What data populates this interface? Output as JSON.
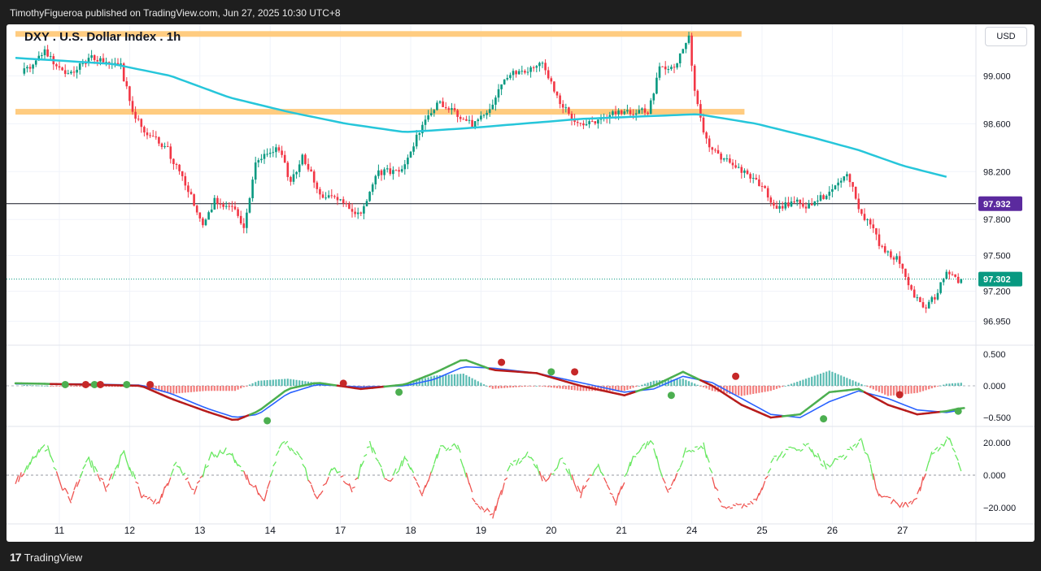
{
  "header": {
    "published": "TimothyFigueroa published on TradingView.com, Jun 27, 2025 10:30 UTC+8"
  },
  "footer": {
    "brand": "TradingView",
    "logo_glyph": "17"
  },
  "toolbar": {
    "currency": "USD"
  },
  "chart_data": {
    "type": "candlestick",
    "title": "DXY . U.S. Dollar Index . 1h",
    "price_axis": {
      "range": [
        96.75,
        99.43
      ],
      "ticks": [
        "99.000",
        "98.600",
        "98.200",
        "97.800",
        "97.500",
        "97.200",
        "96.950"
      ],
      "tick_values": [
        99.0,
        98.6,
        98.2,
        97.8,
        97.5,
        97.2,
        96.95
      ],
      "horizontal_line": {
        "value": 97.932,
        "label": "97.932",
        "color": "#5b2a9e"
      },
      "last_price": {
        "value": 97.302,
        "label": "97.302",
        "color": "#089981"
      }
    },
    "x_axis": {
      "labels": [
        "11",
        "12",
        "13",
        "14",
        "17",
        "18",
        "19",
        "20",
        "21",
        "24",
        "25",
        "26",
        "27"
      ],
      "bar_index": [
        12,
        36,
        60,
        84,
        108,
        132,
        156,
        180,
        204,
        228,
        252,
        276,
        300
      ],
      "bars_total": 321
    },
    "resistance_zones": [
      {
        "value": 99.35,
        "bar_start": -3,
        "bar_end": 245,
        "color": "#ffcc80"
      },
      {
        "value": 98.7,
        "bar_start": -3,
        "bar_end": 246,
        "color": "#ffcc80"
      }
    ],
    "moving_average": {
      "color": "#26c6da",
      "points": [
        [
          -3,
          99.15
        ],
        [
          30,
          99.1
        ],
        [
          50,
          99.0
        ],
        [
          70,
          98.82
        ],
        [
          90,
          98.7
        ],
        [
          110,
          98.6
        ],
        [
          130,
          98.53
        ],
        [
          150,
          98.56
        ],
        [
          170,
          98.6
        ],
        [
          190,
          98.64
        ],
        [
          210,
          98.66
        ],
        [
          230,
          98.68
        ],
        [
          250,
          98.6
        ],
        [
          270,
          98.48
        ],
        [
          285,
          98.38
        ],
        [
          300,
          98.25
        ],
        [
          316,
          98.15
        ]
      ]
    },
    "price_path": [
      [
        -3,
        98.95
      ],
      [
        8,
        99.2
      ],
      [
        16,
        99.0
      ],
      [
        24,
        99.15
      ],
      [
        34,
        99.08
      ],
      [
        38,
        98.7
      ],
      [
        42,
        98.55
      ],
      [
        50,
        98.38
      ],
      [
        58,
        98.0
      ],
      [
        62,
        97.75
      ],
      [
        66,
        97.95
      ],
      [
        72,
        97.92
      ],
      [
        76,
        97.7
      ],
      [
        80,
        98.3
      ],
      [
        88,
        98.4
      ],
      [
        92,
        98.1
      ],
      [
        96,
        98.35
      ],
      [
        102,
        98.0
      ],
      [
        110,
        97.95
      ],
      [
        116,
        97.82
      ],
      [
        122,
        98.2
      ],
      [
        130,
        98.2
      ],
      [
        136,
        98.55
      ],
      [
        142,
        98.78
      ],
      [
        148,
        98.7
      ],
      [
        154,
        98.6
      ],
      [
        160,
        98.72
      ],
      [
        166,
        99.0
      ],
      [
        172,
        99.05
      ],
      [
        178,
        99.1
      ],
      [
        184,
        98.75
      ],
      [
        190,
        98.62
      ],
      [
        196,
        98.6
      ],
      [
        202,
        98.7
      ],
      [
        208,
        98.7
      ],
      [
        214,
        98.7
      ],
      [
        218,
        99.05
      ],
      [
        224,
        99.1
      ],
      [
        228,
        99.35
      ],
      [
        230,
        98.85
      ],
      [
        234,
        98.45
      ],
      [
        240,
        98.3
      ],
      [
        246,
        98.2
      ],
      [
        252,
        98.1
      ],
      [
        258,
        97.9
      ],
      [
        264,
        97.95
      ],
      [
        270,
        97.9
      ],
      [
        276,
        98.05
      ],
      [
        282,
        98.2
      ],
      [
        286,
        97.9
      ],
      [
        290,
        97.75
      ],
      [
        294,
        97.55
      ],
      [
        300,
        97.45
      ],
      [
        304,
        97.2
      ],
      [
        308,
        97.05
      ],
      [
        312,
        97.15
      ],
      [
        316,
        97.35
      ],
      [
        320,
        97.28
      ]
    ],
    "macd": {
      "range": [
        -0.64,
        0.64
      ],
      "ticks": [
        "0.500",
        "0.000",
        "−0.500"
      ],
      "tick_values": [
        0.5,
        0.0,
        -0.5
      ],
      "macd_points": [
        [
          -3,
          0.04
        ],
        [
          20,
          0.02
        ],
        [
          40,
          0.0
        ],
        [
          50,
          -0.2
        ],
        [
          62,
          -0.4
        ],
        [
          72,
          -0.55
        ],
        [
          80,
          -0.4
        ],
        [
          90,
          -0.05
        ],
        [
          100,
          0.05
        ],
        [
          115,
          -0.05
        ],
        [
          130,
          0.02
        ],
        [
          140,
          0.2
        ],
        [
          150,
          0.42
        ],
        [
          160,
          0.25
        ],
        [
          175,
          0.2
        ],
        [
          190,
          0.0
        ],
        [
          205,
          -0.15
        ],
        [
          215,
          0.0
        ],
        [
          225,
          0.22
        ],
        [
          235,
          0.0
        ],
        [
          245,
          -0.3
        ],
        [
          255,
          -0.5
        ],
        [
          265,
          -0.45
        ],
        [
          275,
          -0.1
        ],
        [
          285,
          -0.05
        ],
        [
          295,
          -0.3
        ],
        [
          305,
          -0.45
        ],
        [
          315,
          -0.4
        ],
        [
          320,
          -0.35
        ]
      ],
      "signal_points": [
        [
          -3,
          0.03
        ],
        [
          20,
          0.03
        ],
        [
          40,
          0.01
        ],
        [
          50,
          -0.12
        ],
        [
          62,
          -0.35
        ],
        [
          72,
          -0.5
        ],
        [
          80,
          -0.45
        ],
        [
          90,
          -0.12
        ],
        [
          100,
          0.02
        ],
        [
          115,
          -0.02
        ],
        [
          130,
          0.0
        ],
        [
          140,
          0.1
        ],
        [
          150,
          0.3
        ],
        [
          160,
          0.28
        ],
        [
          175,
          0.2
        ],
        [
          190,
          0.05
        ],
        [
          205,
          -0.1
        ],
        [
          215,
          -0.05
        ],
        [
          225,
          0.15
        ],
        [
          235,
          0.05
        ],
        [
          245,
          -0.2
        ],
        [
          255,
          -0.45
        ],
        [
          265,
          -0.5
        ],
        [
          275,
          -0.25
        ],
        [
          285,
          -0.08
        ],
        [
          295,
          -0.2
        ],
        [
          305,
          -0.38
        ],
        [
          315,
          -0.42
        ],
        [
          320,
          -0.38
        ]
      ],
      "cross_markers": [
        {
          "bar": 14,
          "value": 0.02,
          "color": "#4caf50"
        },
        {
          "bar": 21,
          "value": 0.02,
          "color": "#c62828"
        },
        {
          "bar": 24,
          "value": 0.02,
          "color": "#4caf50"
        },
        {
          "bar": 26,
          "value": 0.02,
          "color": "#c62828"
        },
        {
          "bar": 35,
          "value": 0.02,
          "color": "#4caf50"
        },
        {
          "bar": 43,
          "value": 0.02,
          "color": "#c62828"
        },
        {
          "bar": 83,
          "value": -0.55,
          "color": "#4caf50"
        },
        {
          "bar": 109,
          "value": 0.04,
          "color": "#c62828"
        },
        {
          "bar": 128,
          "value": -0.1,
          "color": "#4caf50"
        },
        {
          "bar": 163,
          "value": 0.37,
          "color": "#c62828"
        },
        {
          "bar": 180,
          "value": 0.22,
          "color": "#4caf50"
        },
        {
          "bar": 188,
          "value": 0.22,
          "color": "#c62828"
        },
        {
          "bar": 221,
          "value": -0.15,
          "color": "#4caf50"
        },
        {
          "bar": 243,
          "value": 0.15,
          "color": "#c62828"
        },
        {
          "bar": 273,
          "value": -0.52,
          "color": "#4caf50"
        },
        {
          "bar": 299,
          "value": -0.14,
          "color": "#c62828"
        },
        {
          "bar": 319,
          "value": -0.4,
          "color": "#4caf50"
        }
      ],
      "colors": {
        "macd_up": "#4caf50",
        "macd_down": "#b71c1c",
        "signal": "#2962ff",
        "hist_up": "#26a69a",
        "hist_down": "#ef5350"
      }
    },
    "oscillator": {
      "range": [
        -30,
        30
      ],
      "ticks": [
        "20.000",
        "0.000",
        "−20.000"
      ],
      "tick_values": [
        20,
        0,
        -20
      ],
      "points": [
        [
          -3,
          -5
        ],
        [
          4,
          12
        ],
        [
          8,
          18
        ],
        [
          12,
          -5
        ],
        [
          16,
          -15
        ],
        [
          22,
          10
        ],
        [
          28,
          -8
        ],
        [
          34,
          14
        ],
        [
          40,
          -12
        ],
        [
          46,
          -18
        ],
        [
          52,
          8
        ],
        [
          58,
          -10
        ],
        [
          64,
          12
        ],
        [
          70,
          15
        ],
        [
          76,
          -2
        ],
        [
          82,
          -14
        ],
        [
          88,
          22
        ],
        [
          94,
          12
        ],
        [
          100,
          -15
        ],
        [
          106,
          5
        ],
        [
          112,
          -10
        ],
        [
          118,
          20
        ],
        [
          124,
          -5
        ],
        [
          130,
          10
        ],
        [
          136,
          -12
        ],
        [
          142,
          16
        ],
        [
          148,
          18
        ],
        [
          154,
          -18
        ],
        [
          160,
          -25
        ],
        [
          166,
          5
        ],
        [
          172,
          14
        ],
        [
          178,
          -5
        ],
        [
          184,
          10
        ],
        [
          190,
          -12
        ],
        [
          196,
          8
        ],
        [
          202,
          -18
        ],
        [
          208,
          12
        ],
        [
          214,
          22
        ],
        [
          220,
          -10
        ],
        [
          226,
          15
        ],
        [
          232,
          18
        ],
        [
          238,
          -18
        ],
        [
          244,
          -20
        ],
        [
          250,
          -15
        ],
        [
          256,
          10
        ],
        [
          262,
          16
        ],
        [
          268,
          18
        ],
        [
          274,
          5
        ],
        [
          280,
          12
        ],
        [
          286,
          22
        ],
        [
          292,
          -12
        ],
        [
          298,
          -18
        ],
        [
          304,
          -17
        ],
        [
          310,
          12
        ],
        [
          316,
          24
        ],
        [
          320,
          4
        ]
      ],
      "colors": {
        "up": "#66e85e",
        "down": "#ef5350",
        "zero": "#9598a1"
      }
    }
  }
}
